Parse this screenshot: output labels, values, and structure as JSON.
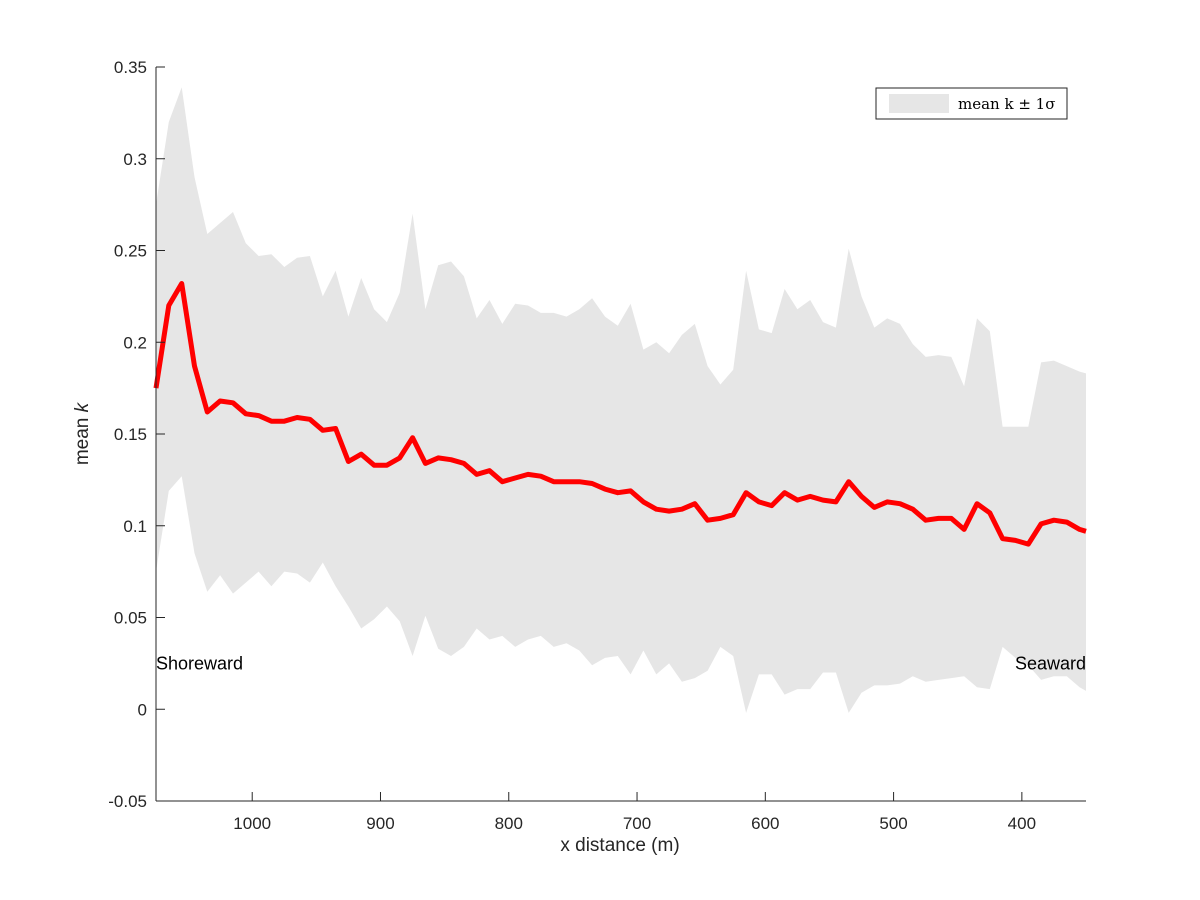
{
  "chart_data": {
    "type": "line",
    "xlabel": "x distance (m)",
    "ylabel_prefix": "mean ",
    "ylabel_var": "k",
    "xlim": [
      1075,
      350
    ],
    "ylim": [
      -0.05,
      0.35
    ],
    "x_reversed": true,
    "grid": false,
    "legend_position": "top-right",
    "legend_label": "mean k ± 1σ",
    "x_ticks": [
      1000,
      900,
      800,
      700,
      600,
      500,
      400
    ],
    "x_tick_labels": [
      "1000",
      "900",
      "800",
      "700",
      "600",
      "500",
      "400"
    ],
    "y_ticks": [
      -0.05,
      0,
      0.05,
      0.1,
      0.15,
      0.2,
      0.25,
      0.3,
      0.35
    ],
    "y_tick_labels": [
      "-0.05",
      "0",
      "0.05",
      "0.1",
      "0.15",
      "0.2",
      "0.25",
      "0.3",
      "0.35"
    ],
    "annotations": [
      {
        "text": "Shoreward",
        "x": 1075,
        "y": 0.025
      },
      {
        "text": "Seaward",
        "x": 350,
        "y": 0.025
      }
    ],
    "colors": {
      "mean_line": "#ff0000",
      "band": "#e6e6e6",
      "axis": "#262626"
    },
    "x": [
      1075,
      1065,
      1055,
      1045,
      1035,
      1025,
      1015,
      1005,
      995,
      985,
      975,
      965,
      955,
      945,
      935,
      925,
      915,
      905,
      895,
      885,
      875,
      865,
      855,
      845,
      835,
      825,
      815,
      805,
      795,
      785,
      775,
      765,
      755,
      745,
      735,
      725,
      715,
      705,
      695,
      685,
      675,
      665,
      655,
      645,
      635,
      625,
      615,
      605,
      595,
      585,
      575,
      565,
      555,
      545,
      535,
      525,
      515,
      505,
      495,
      485,
      475,
      465,
      455,
      445,
      435,
      425,
      415,
      405,
      395,
      385,
      375,
      365,
      355,
      350
    ],
    "series": [
      {
        "role": "mean",
        "values": [
          0.175,
          0.22,
          0.232,
          0.187,
          0.162,
          0.168,
          0.167,
          0.161,
          0.16,
          0.157,
          0.157,
          0.159,
          0.158,
          0.152,
          0.153,
          0.135,
          0.139,
          0.133,
          0.133,
          0.137,
          0.148,
          0.134,
          0.137,
          0.136,
          0.134,
          0.128,
          0.13,
          0.124,
          0.126,
          0.128,
          0.127,
          0.124,
          0.124,
          0.124,
          0.123,
          0.12,
          0.118,
          0.119,
          0.113,
          0.109,
          0.108,
          0.109,
          0.112,
          0.103,
          0.104,
          0.106,
          0.118,
          0.113,
          0.111,
          0.118,
          0.114,
          0.116,
          0.114,
          0.113,
          0.124,
          0.116,
          0.11,
          0.113,
          0.112,
          0.109,
          0.103,
          0.104,
          0.104,
          0.098,
          0.112,
          0.107,
          0.093,
          0.092,
          0.09,
          0.101,
          0.103,
          0.102,
          0.098,
          0.097
        ]
      },
      {
        "role": "upper",
        "values": [
          0.275,
          0.32,
          0.339,
          0.29,
          0.259,
          0.265,
          0.271,
          0.254,
          0.247,
          0.248,
          0.241,
          0.246,
          0.247,
          0.225,
          0.239,
          0.214,
          0.235,
          0.218,
          0.211,
          0.227,
          0.27,
          0.218,
          0.242,
          0.244,
          0.236,
          0.213,
          0.223,
          0.21,
          0.221,
          0.22,
          0.216,
          0.216,
          0.214,
          0.218,
          0.224,
          0.214,
          0.209,
          0.221,
          0.196,
          0.2,
          0.194,
          0.204,
          0.21,
          0.187,
          0.177,
          0.185,
          0.239,
          0.207,
          0.205,
          0.229,
          0.218,
          0.223,
          0.211,
          0.208,
          0.251,
          0.225,
          0.208,
          0.213,
          0.21,
          0.199,
          0.192,
          0.193,
          0.192,
          0.176,
          0.213,
          0.206,
          0.154,
          0.154,
          0.154,
          0.189,
          0.19,
          0.187,
          0.184,
          0.183
        ]
      },
      {
        "role": "lower",
        "values": [
          0.075,
          0.119,
          0.127,
          0.085,
          0.064,
          0.073,
          0.063,
          0.069,
          0.075,
          0.067,
          0.075,
          0.074,
          0.069,
          0.08,
          0.067,
          0.056,
          0.044,
          0.049,
          0.056,
          0.048,
          0.029,
          0.051,
          0.033,
          0.029,
          0.034,
          0.044,
          0.038,
          0.04,
          0.034,
          0.038,
          0.04,
          0.034,
          0.036,
          0.032,
          0.024,
          0.028,
          0.029,
          0.019,
          0.032,
          0.019,
          0.025,
          0.015,
          0.017,
          0.021,
          0.034,
          0.029,
          -0.002,
          0.019,
          0.019,
          0.008,
          0.011,
          0.011,
          0.02,
          0.02,
          -0.002,
          0.009,
          0.013,
          0.013,
          0.014,
          0.018,
          0.015,
          0.016,
          0.017,
          0.018,
          0.012,
          0.011,
          0.034,
          0.028,
          0.024,
          0.016,
          0.018,
          0.018,
          0.012,
          0.01
        ]
      }
    ]
  }
}
